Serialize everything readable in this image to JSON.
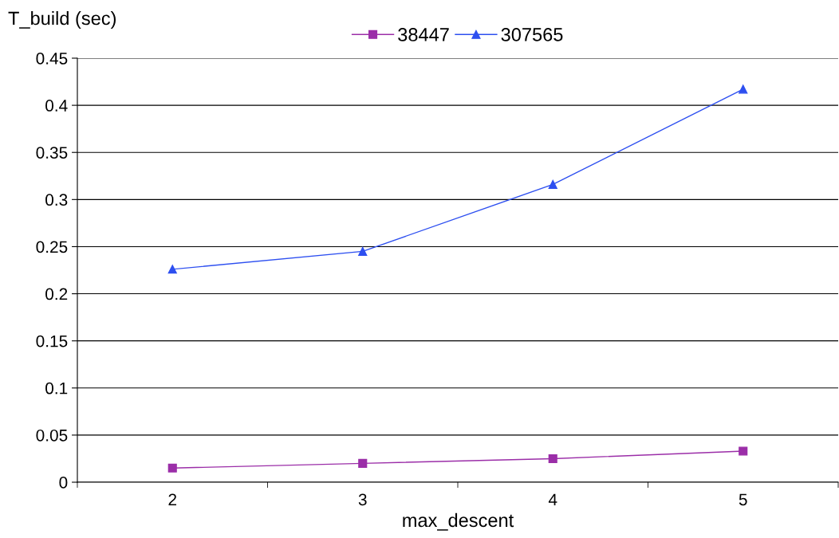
{
  "chart_data": {
    "type": "line",
    "xlabel": "max_descent",
    "ylabel": "T_build (sec)",
    "categories": [
      "2",
      "3",
      "4",
      "5"
    ],
    "series": [
      {
        "name": "38447",
        "color": "#9b2ea8",
        "marker": "square",
        "values": [
          0.015,
          0.02,
          0.025,
          0.033
        ]
      },
      {
        "name": "307565",
        "color": "#2d4ff0",
        "marker": "triangle",
        "values": [
          0.226,
          0.245,
          0.316,
          0.417
        ]
      }
    ],
    "ylim": [
      0,
      0.45
    ],
    "yticks": [
      0,
      0.05,
      0.1,
      0.15,
      0.2,
      0.25,
      0.3,
      0.35,
      0.4,
      0.45
    ],
    "grid": "y",
    "legend": "top",
    "line_style": "solid"
  }
}
